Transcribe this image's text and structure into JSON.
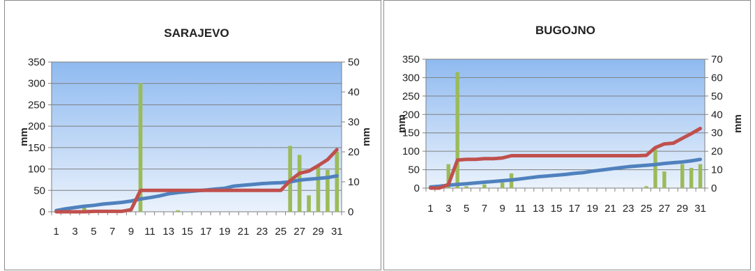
{
  "chart_data": [
    {
      "type": "bar+line",
      "title": "SARAJEVO",
      "ylabel_left": "mm",
      "ylabel_right": "mm",
      "ylim_left": [
        0,
        350
      ],
      "yticks_left": [
        0,
        50,
        100,
        150,
        200,
        250,
        300,
        350
      ],
      "ylim_right": [
        0,
        50
      ],
      "yticks_right": [
        0,
        10,
        20,
        30,
        40,
        50
      ],
      "x": [
        1,
        2,
        3,
        4,
        5,
        6,
        7,
        8,
        9,
        10,
        11,
        12,
        13,
        14,
        15,
        16,
        17,
        18,
        19,
        20,
        21,
        22,
        23,
        24,
        25,
        26,
        27,
        28,
        29,
        30,
        31
      ],
      "xtick_labels": [
        "1",
        "3",
        "5",
        "7",
        "9",
        "11",
        "13",
        "15",
        "17",
        "19",
        "21",
        "23",
        "25",
        "27",
        "29",
        "31"
      ],
      "grid": true,
      "series": [
        {
          "kind": "bar",
          "axis": "right",
          "color": "#9bbb59",
          "values": [
            0,
            0,
            0,
            2,
            0,
            0,
            0,
            0,
            0,
            43,
            0,
            0,
            0,
            0.5,
            0,
            0,
            0,
            0,
            0,
            0,
            0,
            0,
            0,
            0,
            0,
            22,
            19,
            5.5,
            15,
            14,
            20
          ]
        },
        {
          "kind": "line",
          "axis": "left",
          "color": "#4f81bd",
          "values": [
            3,
            7,
            10,
            13,
            15,
            18,
            20,
            22,
            25,
            30,
            33,
            37,
            42,
            45,
            47,
            49,
            51,
            53,
            55,
            60,
            62,
            64,
            66,
            67,
            68,
            70,
            74,
            76,
            78,
            80,
            84
          ]
        },
        {
          "kind": "line",
          "axis": "left",
          "color": "#c0504d",
          "values": [
            0,
            0,
            0,
            0,
            1,
            1,
            1,
            1,
            5,
            50,
            50,
            50,
            50,
            50,
            50,
            50,
            50,
            50,
            50,
            50,
            50,
            50,
            50,
            50,
            50,
            73,
            90,
            95,
            108,
            122,
            145
          ]
        }
      ]
    },
    {
      "type": "bar+line",
      "title": "BUGOJNO",
      "ylabel_left": "mm",
      "ylabel_right": "mm",
      "ylim_left": [
        0,
        350
      ],
      "yticks_left": [
        0,
        50,
        100,
        150,
        200,
        250,
        300,
        350
      ],
      "ylim_right": [
        0,
        70
      ],
      "yticks_right": [
        0,
        10,
        20,
        30,
        40,
        50,
        60,
        70
      ],
      "x": [
        1,
        2,
        3,
        4,
        5,
        6,
        7,
        8,
        9,
        10,
        11,
        12,
        13,
        14,
        15,
        16,
        17,
        18,
        19,
        20,
        21,
        22,
        23,
        24,
        25,
        26,
        27,
        28,
        29,
        30,
        31
      ],
      "xtick_labels": [
        "1",
        "3",
        "5",
        "7",
        "9",
        "11",
        "13",
        "15",
        "17",
        "19",
        "21",
        "23",
        "25",
        "27",
        "29",
        "31"
      ],
      "grid": true,
      "series": [
        {
          "kind": "bar",
          "axis": "right",
          "color": "#9bbb59",
          "values": [
            0,
            0,
            13,
            63,
            1,
            0,
            2,
            0,
            3,
            8,
            0,
            0,
            0,
            0,
            0,
            0,
            0,
            0,
            0,
            0,
            0,
            0,
            0,
            0,
            1,
            21,
            9,
            0,
            13,
            11,
            13
          ]
        },
        {
          "kind": "line",
          "axis": "left",
          "color": "#4f81bd",
          "values": [
            3,
            5,
            8,
            10,
            12,
            14,
            16,
            18,
            20,
            22,
            25,
            28,
            31,
            33,
            35,
            37,
            40,
            42,
            46,
            49,
            52,
            55,
            58,
            60,
            62,
            64,
            67,
            69,
            71,
            74,
            78
          ]
        },
        {
          "kind": "line",
          "axis": "left",
          "color": "#c0504d",
          "values": [
            0,
            0,
            10,
            76,
            78,
            78,
            80,
            80,
            82,
            88,
            88,
            88,
            88,
            88,
            88,
            88,
            88,
            88,
            88,
            88,
            88,
            88,
            88,
            88,
            89,
            110,
            120,
            122,
            135,
            148,
            162
          ]
        }
      ]
    }
  ]
}
